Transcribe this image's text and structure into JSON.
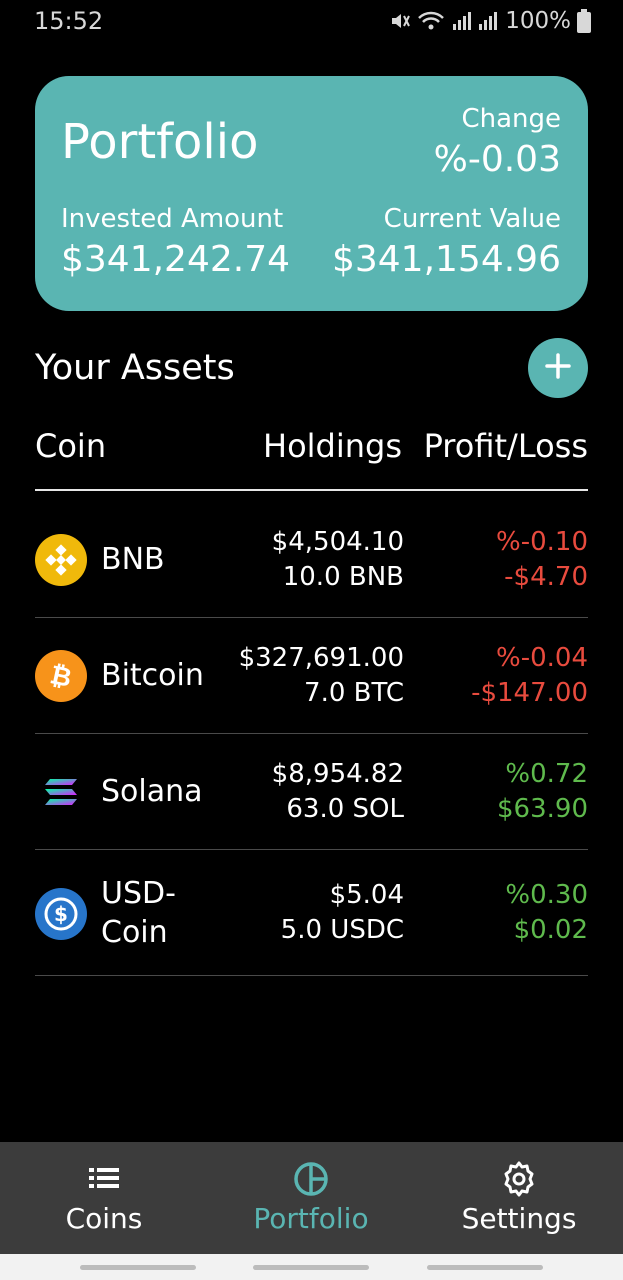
{
  "status_bar": {
    "time": "15:52",
    "battery": "100%",
    "icons": [
      "mute-icon",
      "wifi-icon",
      "signal-icon",
      "signal-icon",
      "battery-icon"
    ]
  },
  "portfolio_card": {
    "title": "Portfolio",
    "change_label": "Change",
    "change_value": "%-0.03",
    "invested_label": "Invested Amount",
    "invested_value": "$341,242.74",
    "current_label": "Current Value",
    "current_value": "$341,154.96"
  },
  "assets": {
    "title": "Your Assets",
    "add_icon": "plus-icon",
    "columns": {
      "coin": "Coin",
      "holdings": "Holdings",
      "pl": "Profit/Loss"
    },
    "rows": [
      {
        "name": "BNB",
        "name_lines": [
          "BNB"
        ],
        "icon": "bnb-icon",
        "value": "$4,504.10",
        "qty": "10.0 BNB",
        "pl_pct": "%-0.10",
        "pl_amt": "-$4.70",
        "trend": "negative"
      },
      {
        "name": "Bitcoin",
        "name_lines": [
          "Bitcoin"
        ],
        "icon": "bitcoin-icon",
        "value": "$327,691.00",
        "qty": "7.0 BTC",
        "pl_pct": "%-0.04",
        "pl_amt": "-$147.00",
        "trend": "negative"
      },
      {
        "name": "Solana",
        "name_lines": [
          "Solana"
        ],
        "icon": "solana-icon",
        "value": "$8,954.82",
        "qty": "63.0 SOL",
        "pl_pct": "%0.72",
        "pl_amt": "$63.90",
        "trend": "positive"
      },
      {
        "name": "USD-Coin",
        "name_lines": [
          "USD-",
          "Coin"
        ],
        "icon": "usdc-icon",
        "value": "$5.04",
        "qty": "5.0 USDC",
        "pl_pct": "%0.30",
        "pl_amt": "$0.02",
        "trend": "positive"
      }
    ]
  },
  "bottom_nav": {
    "items": [
      {
        "label": "Coins",
        "icon": "list-icon",
        "active": false
      },
      {
        "label": "Portfolio",
        "icon": "pie-chart-icon",
        "active": true
      },
      {
        "label": "Settings",
        "icon": "gear-icon",
        "active": false
      }
    ]
  },
  "colors": {
    "accent": "#5ab5b2",
    "negative": "#e84b3e",
    "positive": "#5fba4d",
    "background": "#000000",
    "nav_background": "#3c3c3c"
  }
}
